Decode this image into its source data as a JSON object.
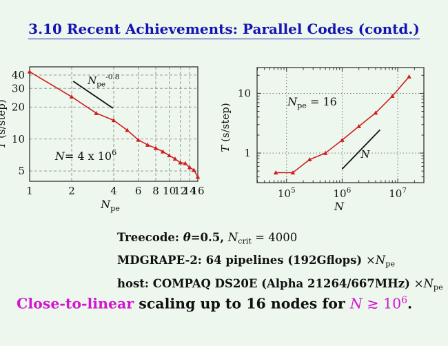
{
  "page": {
    "background": "#edf7ed"
  },
  "title": {
    "text": "3.10 Recent Achievements: Parallel Codes (contd.)",
    "color": "#1414b4"
  },
  "colors": {
    "series_red": "#cf1d1d",
    "guide_black": "#111111",
    "magenta": "#d116d1",
    "frame": "#333333",
    "grid": "#888888"
  },
  "specs": {
    "lines": [
      {
        "name": "treecode",
        "segments": [
          {
            "t": "Treecode:  ",
            "b": 1
          },
          {
            "t": "θ",
            "b": 1,
            "i": 1
          },
          {
            "t": "=0.5, ",
            "b": 1
          },
          {
            "t": "N",
            "i": 1
          },
          {
            "t": "crit",
            "sub": 1
          },
          {
            "t": " = 4000"
          }
        ]
      },
      {
        "name": "mdgrape",
        "segments": [
          {
            "t": "MDGRAPE-2:  64 pipelines (192Gflops) ",
            "b": 1
          },
          {
            "t": "×"
          },
          {
            "t": "N",
            "i": 1
          },
          {
            "t": "pe",
            "sub": 1
          }
        ]
      },
      {
        "name": "host",
        "segments": [
          {
            "t": "host:  COMPAQ DS20E (Alpha 21264/667MHz) ",
            "b": 1
          },
          {
            "t": "×"
          },
          {
            "t": "N",
            "i": 1
          },
          {
            "t": "pe",
            "sub": 1
          }
        ]
      }
    ]
  },
  "conclusion": {
    "segments": [
      {
        "t": "Close-to-linear",
        "b": 1,
        "color": "#d116d1"
      },
      {
        "t": " scaling up to 16 nodes for ",
        "b": 1
      },
      {
        "t": "N",
        "i": 1,
        "color": "#d116d1"
      },
      {
        "t": " ≳ ",
        "color": "#d116d1"
      },
      {
        "t": "10",
        "color": "#d116d1"
      },
      {
        "t": "6",
        "sup": 1,
        "color": "#d116d1"
      },
      {
        "t": ".",
        "b": 1
      }
    ]
  },
  "chart_data": [
    {
      "name": "left-chart",
      "type": "line",
      "title": "",
      "xlabel_parts": [
        {
          "t": "N",
          "i": 1
        },
        {
          "t": "pe",
          "sub": 1
        }
      ],
      "ylabel_parts": [
        {
          "t": "T",
          "i": 1
        },
        {
          "t": " (s/step)"
        }
      ],
      "xscale": "log",
      "yscale": "log",
      "xlim": [
        1,
        16
      ],
      "ylim": [
        4.0,
        47.8
      ],
      "grid": true,
      "legend": "none",
      "xticks": [
        {
          "v": 1,
          "label": "1"
        },
        {
          "v": 2,
          "label": "2"
        },
        {
          "v": 4,
          "label": "4"
        },
        {
          "v": 6,
          "label": "6"
        },
        {
          "v": 8,
          "label": "8"
        },
        {
          "v": 10,
          "label": "10"
        },
        {
          "v": 12,
          "label": "12"
        },
        {
          "v": 14,
          "label": "14"
        },
        {
          "v": 16,
          "label": "16"
        }
      ],
      "yticks": [
        {
          "v": 5,
          "label": "5"
        },
        {
          "v": 10,
          "label": "10"
        },
        {
          "v": 20,
          "label": "20"
        },
        {
          "v": 30,
          "label": "30"
        },
        {
          "v": 40,
          "label": "40"
        }
      ],
      "series": [
        {
          "name": "T-vs-Npe (N = 4e6)",
          "color": "#cf1d1d",
          "marker": "triangle",
          "x": [
            1,
            2,
            3,
            4,
            5,
            6,
            7,
            8,
            9,
            10,
            11,
            12,
            13,
            14,
            15,
            16
          ],
          "y": [
            43,
            25,
            17.5,
            15,
            12.1,
            9.8,
            8.8,
            8.2,
            7.6,
            7.0,
            6.5,
            6.0,
            5.9,
            5.4,
            5.1,
            4.4
          ]
        }
      ],
      "guide_line": {
        "x": [
          2.05,
          3.95
        ],
        "y": [
          35,
          19.5
        ],
        "color": "#111111"
      },
      "annotations": [
        {
          "name": "slope-label",
          "x": 2.6,
          "y": 33,
          "anchor": "start",
          "size": 15,
          "parts": [
            {
              "t": "N",
              "i": 1
            },
            {
              "t": "pe",
              "sub": 1
            },
            {
              "t": "-0.8",
              "sup": 1
            }
          ]
        },
        {
          "name": "n-value-label",
          "x": 1.52,
          "y": 6.35,
          "anchor": "start",
          "size": 16,
          "parts": [
            {
              "t": "N",
              "i": 1
            },
            {
              "t": "= 4 x 10"
            },
            {
              "t": "6",
              "sup": 1
            }
          ]
        }
      ]
    },
    {
      "name": "right-chart",
      "type": "line",
      "title": "",
      "xlabel_parts": [
        {
          "t": "N",
          "i": 1
        }
      ],
      "ylabel_parts": [
        {
          "t": "T",
          "i": 1
        },
        {
          "t": " (s/step)"
        }
      ],
      "xscale": "log",
      "yscale": "log",
      "xlim": [
        29512,
        29512000
      ],
      "ylim": [
        0.32,
        27
      ],
      "grid": true,
      "legend": "none",
      "xticks": [
        {
          "v": 100000,
          "parts": [
            {
              "t": "10"
            },
            {
              "t": "5",
              "sup": 1
            }
          ]
        },
        {
          "v": 1000000,
          "parts": [
            {
              "t": "10"
            },
            {
              "t": "6",
              "sup": 1
            }
          ]
        },
        {
          "v": 10000000,
          "parts": [
            {
              "t": "10"
            },
            {
              "t": "7",
              "sup": 1
            }
          ]
        }
      ],
      "yticks": [
        {
          "v": 1,
          "label": "1"
        },
        {
          "v": 10,
          "label": "10"
        }
      ],
      "series": [
        {
          "name": "T-vs-N (Npe = 16)",
          "color": "#cf1d1d",
          "marker": "triangle",
          "x": [
            64000,
            130000,
            260000,
            500000,
            1000000,
            2000000,
            4000000,
            8000000,
            16000000
          ],
          "y": [
            0.47,
            0.47,
            0.78,
            1.0,
            1.65,
            2.8,
            4.7,
            9.0,
            19
          ]
        }
      ],
      "guide_line": {
        "x": [
          1000000,
          4800000
        ],
        "y": [
          0.54,
          2.45
        ],
        "color": "#111111"
      },
      "annotations": [
        {
          "name": "npe-label",
          "x": 104000,
          "y": 6.3,
          "anchor": "start",
          "size": 16,
          "parts": [
            {
              "t": "N",
              "i": 1
            },
            {
              "t": "pe",
              "sub": 1
            },
            {
              "t": " = 16"
            }
          ]
        },
        {
          "name": "guide-label",
          "x": 2600000,
          "y": 0.83,
          "anchor": "middle",
          "size": 15,
          "parts": [
            {
              "t": "N",
              "i": 1
            }
          ]
        }
      ]
    }
  ]
}
